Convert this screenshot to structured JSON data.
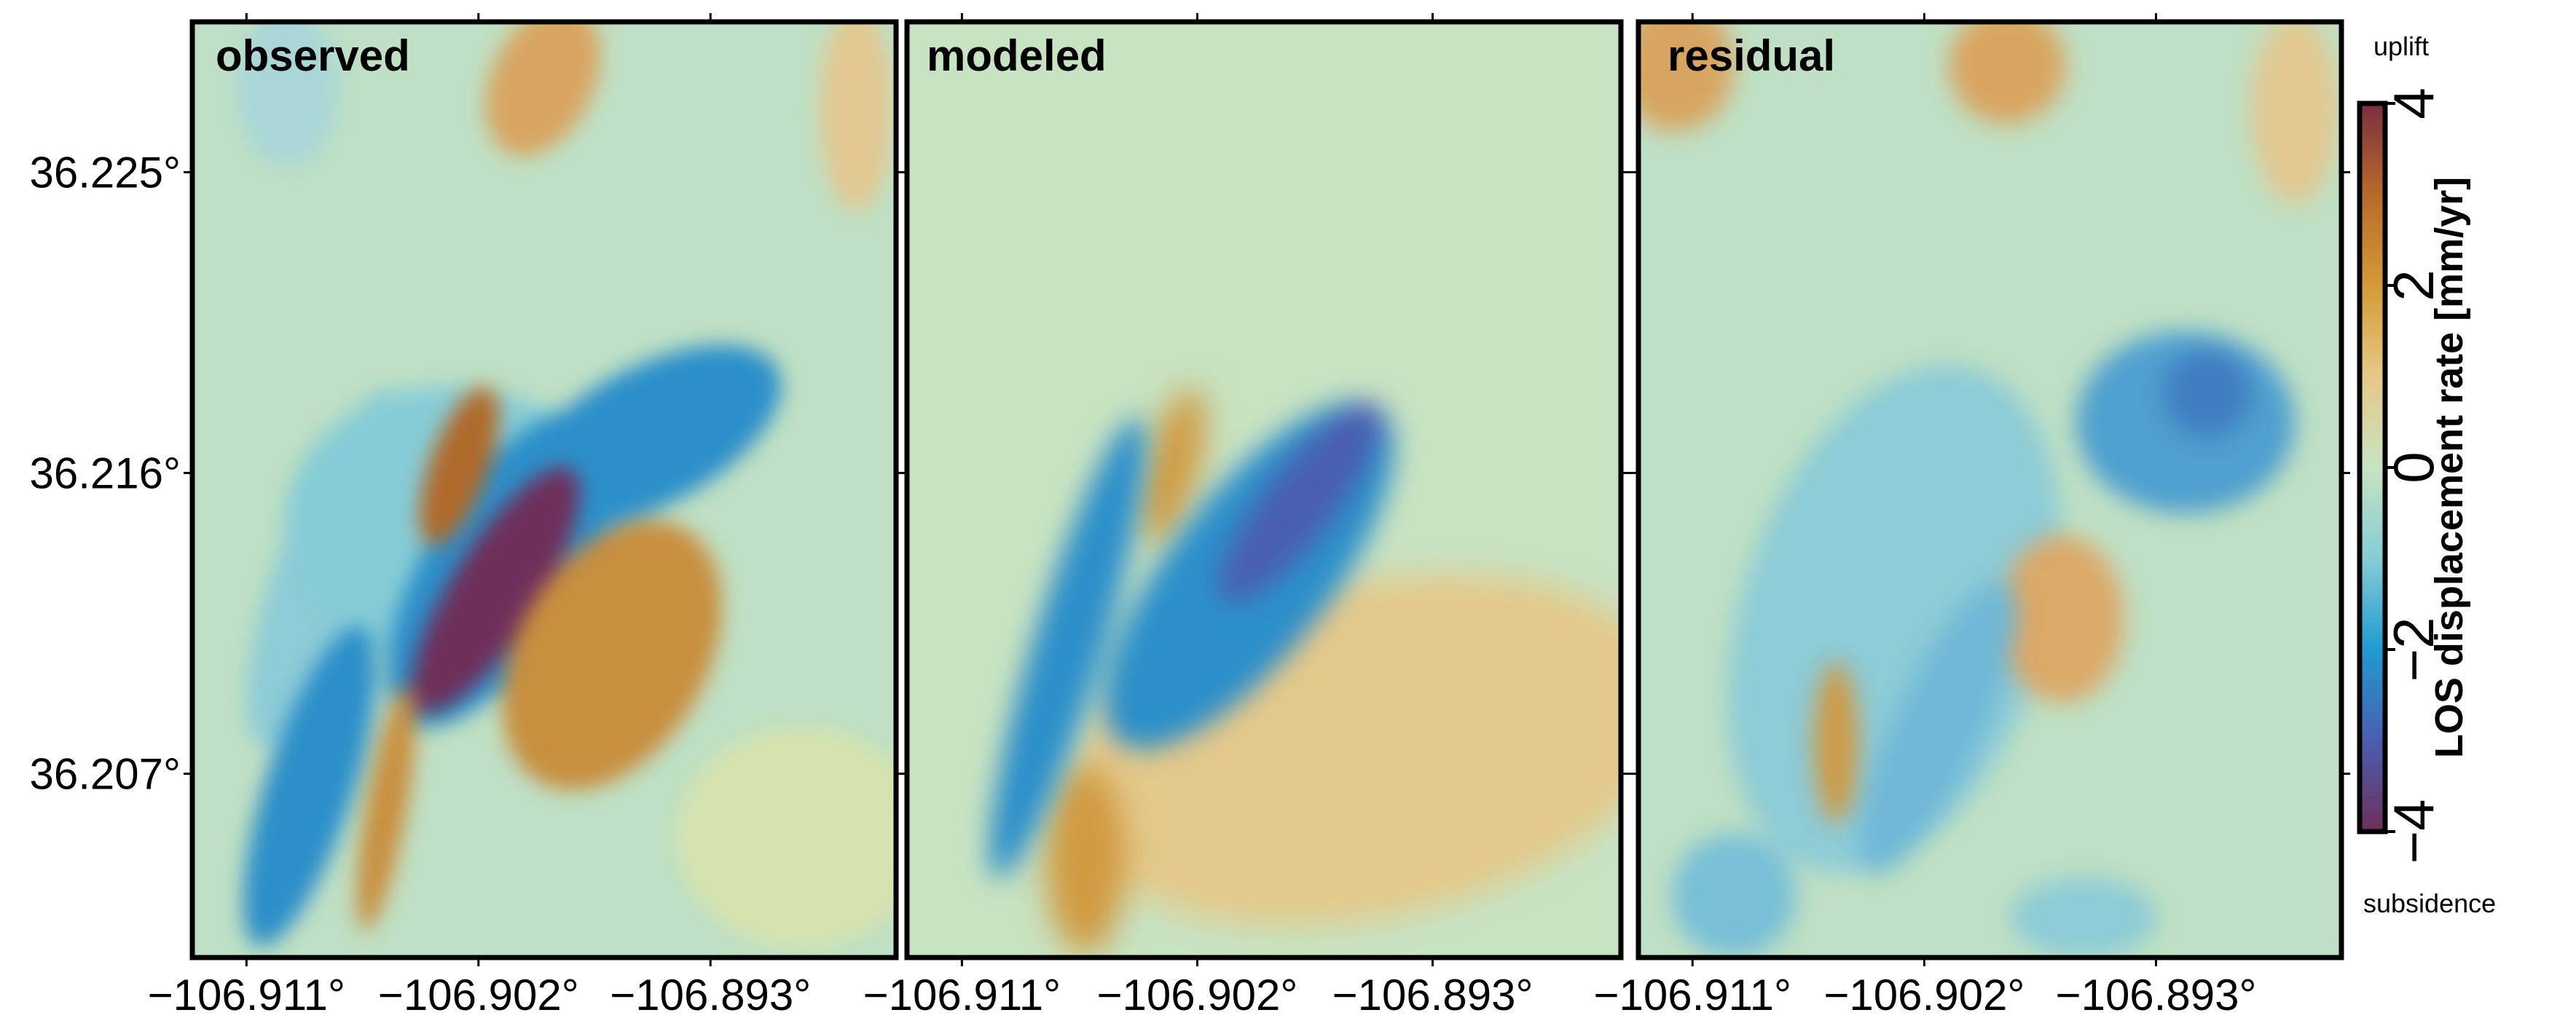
{
  "chart_data": {
    "type": "heatmap",
    "panels": [
      {
        "title": "observed",
        "field": "observed"
      },
      {
        "title": "modeled",
        "field": "modeled"
      },
      {
        "title": "residual",
        "field": "residual"
      }
    ],
    "x_ticks": [
      -106.911,
      -106.902,
      -106.893
    ],
    "x_tick_labels": [
      "−106.911°",
      "−106.902°",
      "−106.893°"
    ],
    "y_ticks": [
      36.225,
      36.216,
      36.207
    ],
    "y_tick_labels": [
      "36.225°",
      "36.216°",
      "36.207°"
    ],
    "xlim": [
      -106.9131,
      -106.8858
    ],
    "ylim": [
      36.2015,
      36.2295
    ],
    "colorbar": {
      "label": "LOS displacement rate [mm/yr]",
      "range": [
        -4,
        4
      ],
      "ticks": [
        4,
        2,
        0,
        -2,
        -4
      ],
      "tick_labels": [
        "4",
        "2",
        "0",
        "−2",
        "−4"
      ],
      "top_label": "uplift",
      "bottom_label": "subsidence",
      "colors": [
        "#6e2f5a",
        "#4a5eb0",
        "#1f9bd0",
        "#86ccd6",
        "#c8e3c2",
        "#e6c885",
        "#d39a35",
        "#b86a2a",
        "#7a2f40"
      ]
    }
  }
}
